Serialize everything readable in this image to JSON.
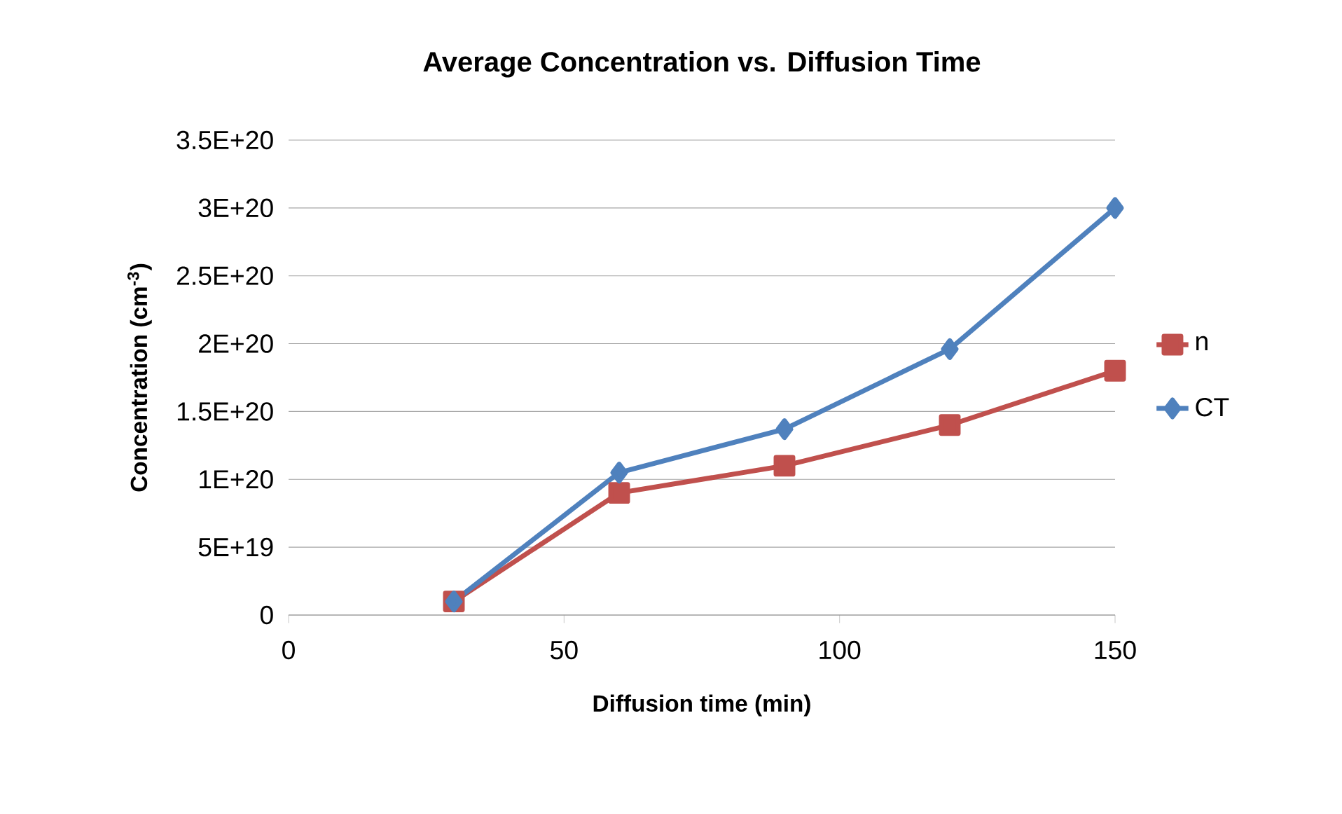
{
  "chart_data": {
    "type": "line",
    "title": "Average Concentration vs. Diffusion Time",
    "xlabel": "Diffusion time (min)",
    "ylabel": "Concentration (cm$^{-3}$)",
    "x": [
      30,
      60,
      90,
      120,
      150
    ],
    "series": [
      {
        "name": "n",
        "color": "#c0504d",
        "marker": "square",
        "values": [
          1e+19,
          9e+19,
          1.1e+20,
          1.4e+20,
          1.8e+20
        ]
      },
      {
        "name": "CT",
        "color": "#4f81bd",
        "marker": "diamond",
        "values": [
          1e+19,
          1.05e+20,
          1.37e+20,
          1.96e+20,
          3e+20
        ]
      }
    ],
    "xlim": [
      0,
      150
    ],
    "xticks": [
      0,
      50,
      100,
      150
    ],
    "ylim": [
      0,
      3.5e+20
    ],
    "yticks": [
      0,
      {
        "value": 5e+19,
        "label": "5E+19"
      },
      {
        "value": 1e+20,
        "label": "1E+20"
      },
      {
        "value": 1.5e+20,
        "label": "1.5E+20"
      },
      {
        "value": 2e+20,
        "label": "2E+20"
      },
      {
        "value": 2.5e+20,
        "label": "2.5E+20"
      },
      {
        "value": 3e+20,
        "label": "3E+20"
      },
      {
        "value": 3.5e+20,
        "label": "3.5E+20"
      }
    ],
    "grid": "y",
    "legend": "right",
    "line_style": "solid"
  }
}
